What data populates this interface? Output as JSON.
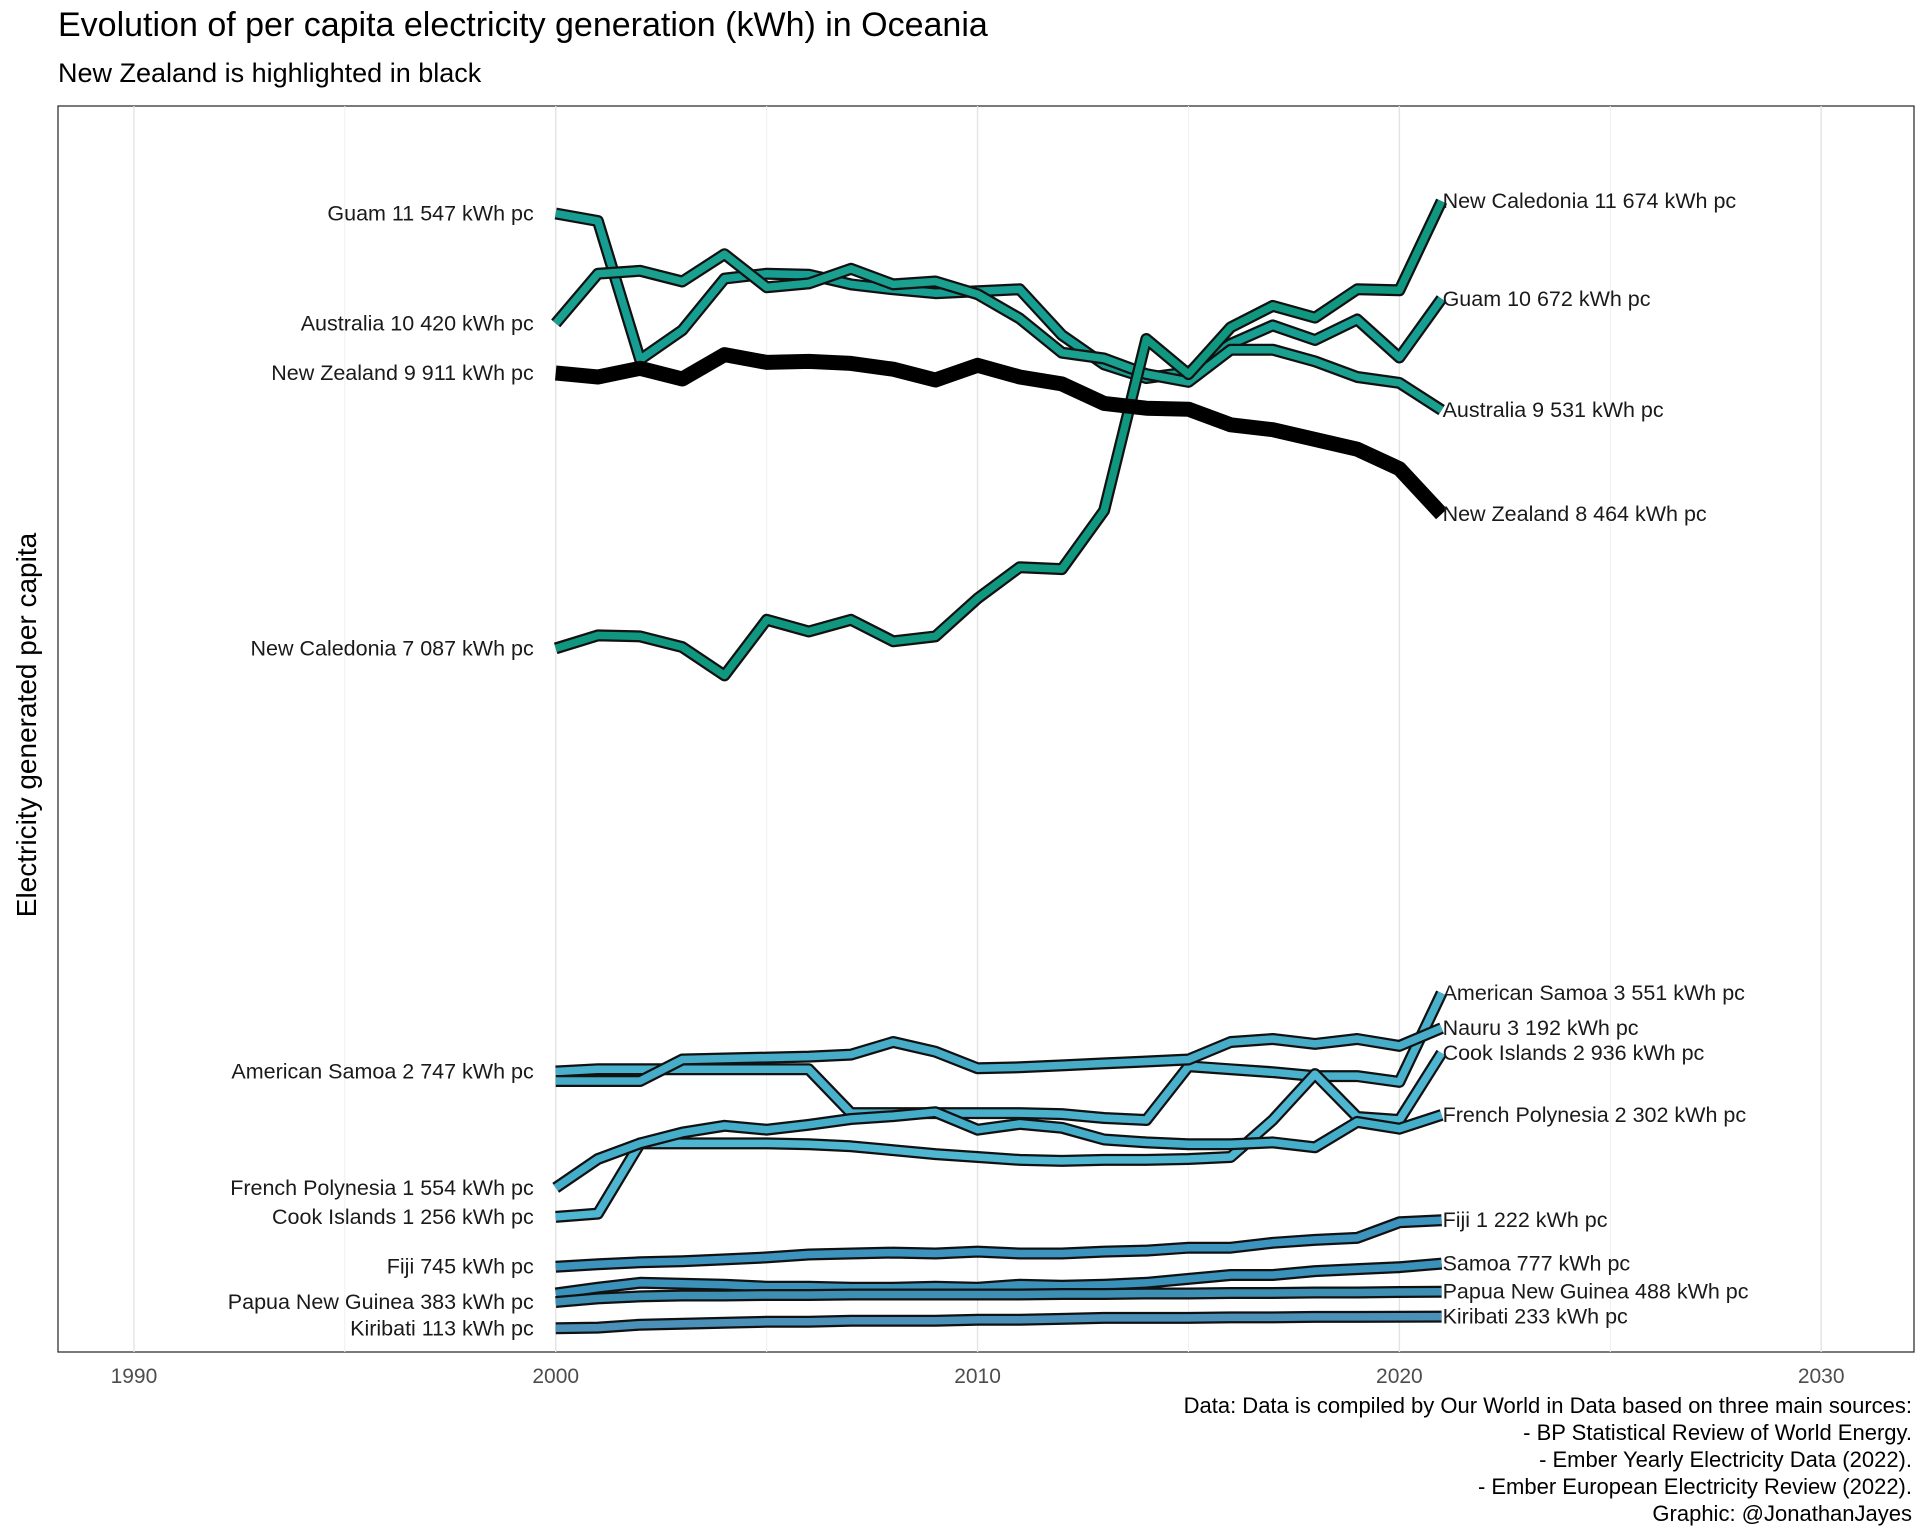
{
  "title": "Evolution of per capita electricity generation (kWh) in Oceania",
  "subtitle": "New Zealand is highlighted in black",
  "caption": [
    "Data: Data is compiled by Our World in Data based on three main sources:",
    "- BP Statistical Review of World Energy.",
    "- Ember Yearly Electricity Data (2022).",
    "- Ember European Electricity Review (2022).",
    "Graphic: @JonathanJayes"
  ],
  "chart_data": {
    "type": "line",
    "title": "Evolution of per capita electricity generation (kWh) in Oceania",
    "subtitle": "New Zealand is highlighted in black",
    "xlabel": "",
    "ylabel": "Electricity generated per capita",
    "xlim": [
      1988.2,
      2032.2
    ],
    "ylim": [
      -130,
      12650
    ],
    "x_ticks": [
      1990,
      2000,
      2010,
      2020,
      2030
    ],
    "y_ticks_shown": false,
    "grid": "vertical major and minor",
    "legend": "none",
    "label_suffix": " kWh pc",
    "x": [
      2000,
      2001,
      2002,
      2003,
      2004,
      2005,
      2006,
      2007,
      2008,
      2009,
      2010,
      2011,
      2012,
      2013,
      2014,
      2015,
      2016,
      2017,
      2018,
      2019,
      2020,
      2021
    ],
    "series": [
      {
        "name": "Guam",
        "color": "#169e92",
        "highlight": false,
        "values": [
          11547,
          11470,
          10050,
          10350,
          10880,
          10930,
          10920,
          10820,
          10770,
          10730,
          10750,
          10770,
          10300,
          10000,
          9860,
          9920,
          10210,
          10400,
          10250,
          10460,
          10070,
          10672
        ]
      },
      {
        "name": "Australia",
        "color": "#1aa08f",
        "highlight": false,
        "values": [
          10420,
          10930,
          10960,
          10850,
          11130,
          10790,
          10830,
          10980,
          10820,
          10850,
          10720,
          10470,
          10120,
          10060,
          9900,
          9820,
          10150,
          10150,
          10030,
          9870,
          9810,
          9531
        ]
      },
      {
        "name": "New Zealand",
        "color": "#000000",
        "highlight": true,
        "values": [
          9911,
          9870,
          9960,
          9850,
          10100,
          10020,
          10030,
          10010,
          9950,
          9840,
          9990,
          9870,
          9800,
          9600,
          9550,
          9540,
          9380,
          9330,
          9230,
          9130,
          8930,
          8464
        ]
      },
      {
        "name": "New Caledonia",
        "color": "#10977f",
        "highlight": false,
        "values": [
          7087,
          7220,
          7210,
          7100,
          6810,
          7380,
          7260,
          7380,
          7160,
          7210,
          7600,
          7920,
          7900,
          8500,
          10260,
          9900,
          10380,
          10600,
          10480,
          10770,
          10760,
          11674
        ]
      },
      {
        "name": "American Samoa",
        "color": "#4ab1cc",
        "highlight": false,
        "values": [
          2747,
          2770,
          2770,
          2770,
          2770,
          2770,
          2770,
          2320,
          2320,
          2320,
          2320,
          2320,
          2310,
          2270,
          2250,
          2800,
          2770,
          2740,
          2700,
          2700,
          2640,
          3551
        ]
      },
      {
        "name": "Nauru",
        "color": "#46acc8",
        "highlight": false,
        "values": [
          2650,
          2650,
          2650,
          2870,
          2880,
          2890,
          2900,
          2920,
          3050,
          2950,
          2780,
          2790,
          2810,
          2830,
          2850,
          2870,
          3050,
          3080,
          3030,
          3080,
          3010,
          3192
        ]
      },
      {
        "name": "Cook Islands",
        "color": "#4fb6d1",
        "highlight": false,
        "values": [
          1256,
          1290,
          2010,
          2010,
          2010,
          2010,
          2000,
          1980,
          1940,
          1900,
          1870,
          1840,
          1830,
          1840,
          1840,
          1850,
          1870,
          2250,
          2720,
          2280,
          2250,
          2936
        ]
      },
      {
        "name": "French Polynesia",
        "color": "#44adc9",
        "highlight": false,
        "values": [
          1554,
          1850,
          2010,
          2120,
          2190,
          2150,
          2200,
          2260,
          2290,
          2330,
          2150,
          2210,
          2170,
          2050,
          2020,
          2000,
          2000,
          2020,
          1970,
          2230,
          2160,
          2302
        ]
      },
      {
        "name": "Fiji",
        "color": "#3c94be",
        "highlight": false,
        "values": [
          745,
          770,
          790,
          800,
          820,
          840,
          870,
          880,
          890,
          880,
          900,
          880,
          880,
          900,
          910,
          940,
          940,
          990,
          1020,
          1040,
          1200,
          1222
        ]
      },
      {
        "name": "Samoa",
        "color": "#3a91ba",
        "highlight": false,
        "values": [
          470,
          530,
          580,
          570,
          560,
          540,
          540,
          530,
          530,
          540,
          530,
          560,
          550,
          560,
          580,
          620,
          660,
          660,
          700,
          720,
          740,
          777
        ]
      },
      {
        "name": "Papua New Guinea",
        "color": "#3d8fb3",
        "highlight": false,
        "values": [
          383,
          420,
          440,
          450,
          450,
          455,
          455,
          460,
          460,
          460,
          460,
          460,
          465,
          465,
          470,
          470,
          475,
          475,
          480,
          480,
          485,
          488
        ]
      },
      {
        "name": "Kiribati",
        "color": "#4a90b8",
        "highlight": false,
        "values": [
          113,
          120,
          150,
          160,
          170,
          180,
          180,
          190,
          190,
          190,
          200,
          200,
          210,
          220,
          220,
          220,
          225,
          225,
          230,
          230,
          232,
          233
        ]
      }
    ],
    "start_labels": [
      {
        "series": "Guam",
        "text": "Guam 11 547 kWh pc"
      },
      {
        "series": "Australia",
        "text": "Australia 10 420 kWh pc"
      },
      {
        "series": "New Zealand",
        "text": "New Zealand 9 911 kWh pc"
      },
      {
        "series": "New Caledonia",
        "text": "New Caledonia 7 087 kWh pc"
      },
      {
        "series": "American Samoa",
        "text": "American Samoa 2 747 kWh pc"
      },
      {
        "series": "French Polynesia",
        "text": "French Polynesia 1 554 kWh pc"
      },
      {
        "series": "Cook Islands",
        "text": "Cook Islands 1 256 kWh pc"
      },
      {
        "series": "Fiji",
        "text": "Fiji 745 kWh pc"
      },
      {
        "series": "Papua New Guinea",
        "text": "Papua New Guinea 383 kWh pc"
      },
      {
        "series": "Kiribati",
        "text": "Kiribati 113 kWh pc"
      }
    ],
    "end_labels": [
      {
        "series": "New Caledonia",
        "text": "New Caledonia 11 674 kWh pc"
      },
      {
        "series": "Guam",
        "text": "Guam 10 672 kWh pc"
      },
      {
        "series": "Australia",
        "text": "Australia 9 531 kWh pc"
      },
      {
        "series": "New Zealand",
        "text": "New Zealand 8 464 kWh pc"
      },
      {
        "series": "American Samoa",
        "text": "American Samoa 3 551 kWh pc"
      },
      {
        "series": "Nauru",
        "text": "Nauru 3 192 kWh pc"
      },
      {
        "series": "Cook Islands",
        "text": "Cook Islands 2 936 kWh pc"
      },
      {
        "series": "French Polynesia",
        "text": "French Polynesia 2 302 kWh pc"
      },
      {
        "series": "Fiji",
        "text": "Fiji 1 222 kWh pc"
      },
      {
        "series": "Samoa",
        "text": "Samoa 777 kWh pc"
      },
      {
        "series": "Papua New Guinea",
        "text": "Papua New Guinea 488 kWh pc"
      },
      {
        "series": "Kiribati",
        "text": "Kiribati 233 kWh pc"
      }
    ]
  }
}
